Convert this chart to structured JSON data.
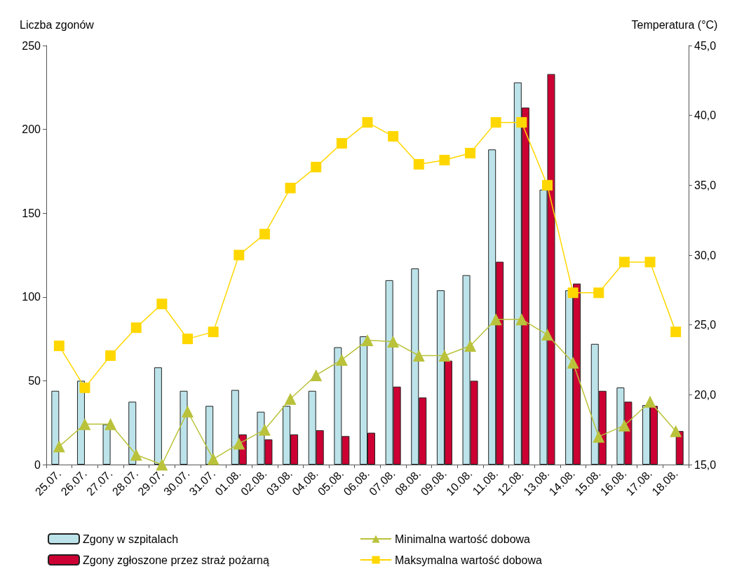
{
  "chart_data": {
    "type": "bar",
    "ylabel": "Liczba zgonów",
    "y2label": "Temperatura (°C)",
    "categories": [
      "25.07.",
      "26.07.",
      "27.07.",
      "28.07.",
      "29.07.",
      "30.07.",
      "31.07.",
      "01.08.",
      "02.08.",
      "03.08.",
      "04.08.",
      "05.08.",
      "06.08.",
      "07.08.",
      "08.08.",
      "09.08.",
      "10.08.",
      "11.08.",
      "12.08.",
      "13.08.",
      "14.08.",
      "15.08.",
      "16.08.",
      "17.08.",
      "18.08."
    ],
    "series": [
      {
        "name": "Zgony w szpitalach",
        "color": "#bde3ea",
        "values": [
          44,
          50,
          24,
          37.5,
          58,
          44,
          35,
          44.5,
          31.5,
          35,
          44,
          70,
          76.5,
          110,
          117,
          104,
          113,
          188,
          228,
          164,
          104,
          72,
          46,
          35.5,
          null
        ]
      },
      {
        "name": "Zgony zgłoszone przez straż pożarną",
        "color": "#cc0033",
        "values": [
          null,
          null,
          null,
          null,
          null,
          null,
          null,
          18,
          15,
          18,
          20.5,
          17,
          19,
          46.5,
          40,
          62,
          50,
          121,
          213,
          233,
          108,
          44,
          37.5,
          35,
          20
        ]
      },
      {
        "name": "Minimalna wartość dobowa",
        "type": "line",
        "axis": "y2",
        "marker": "triangle",
        "color": "#b9c23a",
        "values": [
          16.3,
          17.9,
          17.9,
          15.7,
          15.0,
          18.8,
          15.4,
          16.5,
          17.5,
          19.7,
          21.4,
          22.5,
          23.9,
          23.8,
          22.8,
          22.8,
          23.5,
          25.4,
          25.4,
          24.3,
          22.3,
          17.0,
          17.8,
          19.5,
          17.4
        ]
      },
      {
        "name": "Maksymalna wartość dobowa",
        "type": "line",
        "axis": "y2",
        "marker": "square",
        "color": "#ffd700",
        "values": [
          23.5,
          20.5,
          22.8,
          24.8,
          26.5,
          24.0,
          24.5,
          30.0,
          31.5,
          34.8,
          36.3,
          38.0,
          39.5,
          38.5,
          36.5,
          36.8,
          37.3,
          39.5,
          39.5,
          35.0,
          27.3,
          27.3,
          29.5,
          29.5,
          24.5
        ]
      }
    ],
    "ylim": [
      0,
      250
    ],
    "yticks": [
      0,
      50,
      100,
      150,
      200,
      250
    ],
    "y2lim": [
      15,
      45
    ],
    "y2ticks": [
      {
        "value": 15,
        "label": "15,0"
      },
      {
        "value": 20,
        "label": "20,0"
      },
      {
        "value": 25,
        "label": "25,0"
      },
      {
        "value": 30,
        "label": "30,0"
      },
      {
        "value": 35,
        "label": "35,0"
      },
      {
        "value": 40,
        "label": "40,0"
      },
      {
        "value": 45,
        "label": "45,0"
      }
    ],
    "grid": false,
    "legend": "bottom"
  }
}
